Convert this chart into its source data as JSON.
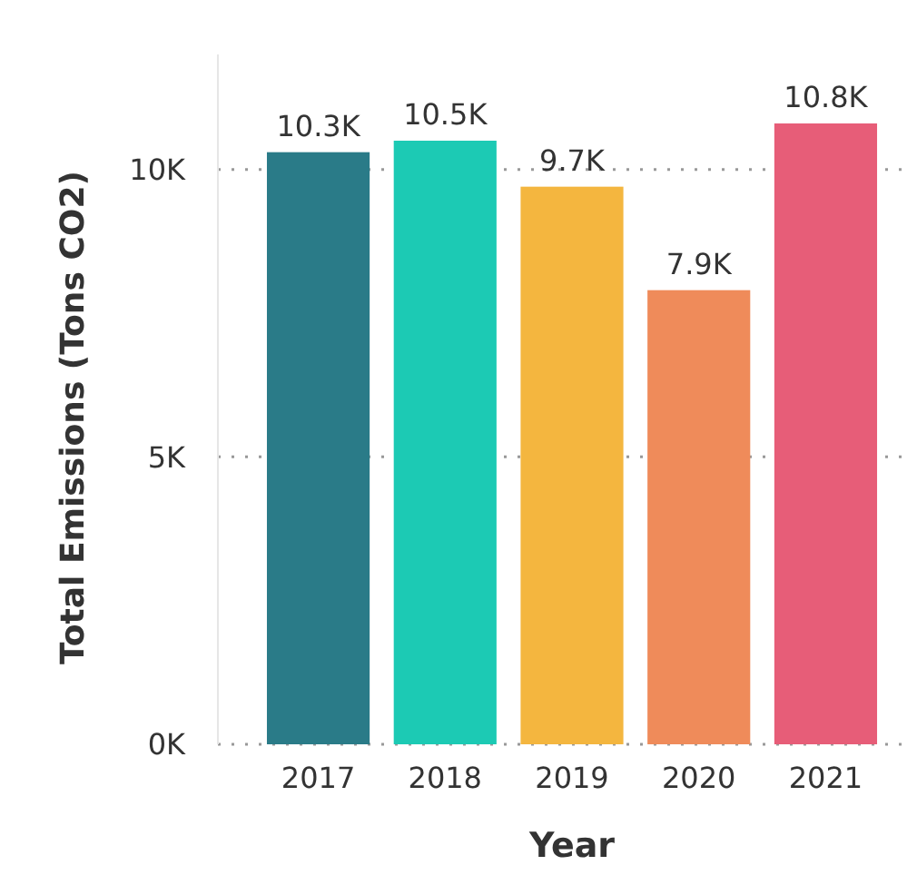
{
  "chart_data": {
    "type": "bar",
    "xlabel": "Year",
    "ylabel": "Total Emissions (Tons CO2)",
    "categories": [
      "2017",
      "2018",
      "2019",
      "2020",
      "2021"
    ],
    "values": [
      10300,
      10500,
      9700,
      7900,
      10800
    ],
    "colors": [
      "#2a7b88",
      "#1ccab4",
      "#f4b63f",
      "#ef8b5a",
      "#e75d78"
    ],
    "value_labels": [
      "10.3K",
      "10.5K",
      "9.7K",
      "7.9K",
      "10.8K"
    ],
    "ylim": [
      0,
      12000
    ],
    "yticks": [
      {
        "value": 0,
        "label": "0K"
      },
      {
        "value": 5000,
        "label": "5K"
      },
      {
        "value": 10000,
        "label": "10K"
      }
    ],
    "grid": "y"
  }
}
